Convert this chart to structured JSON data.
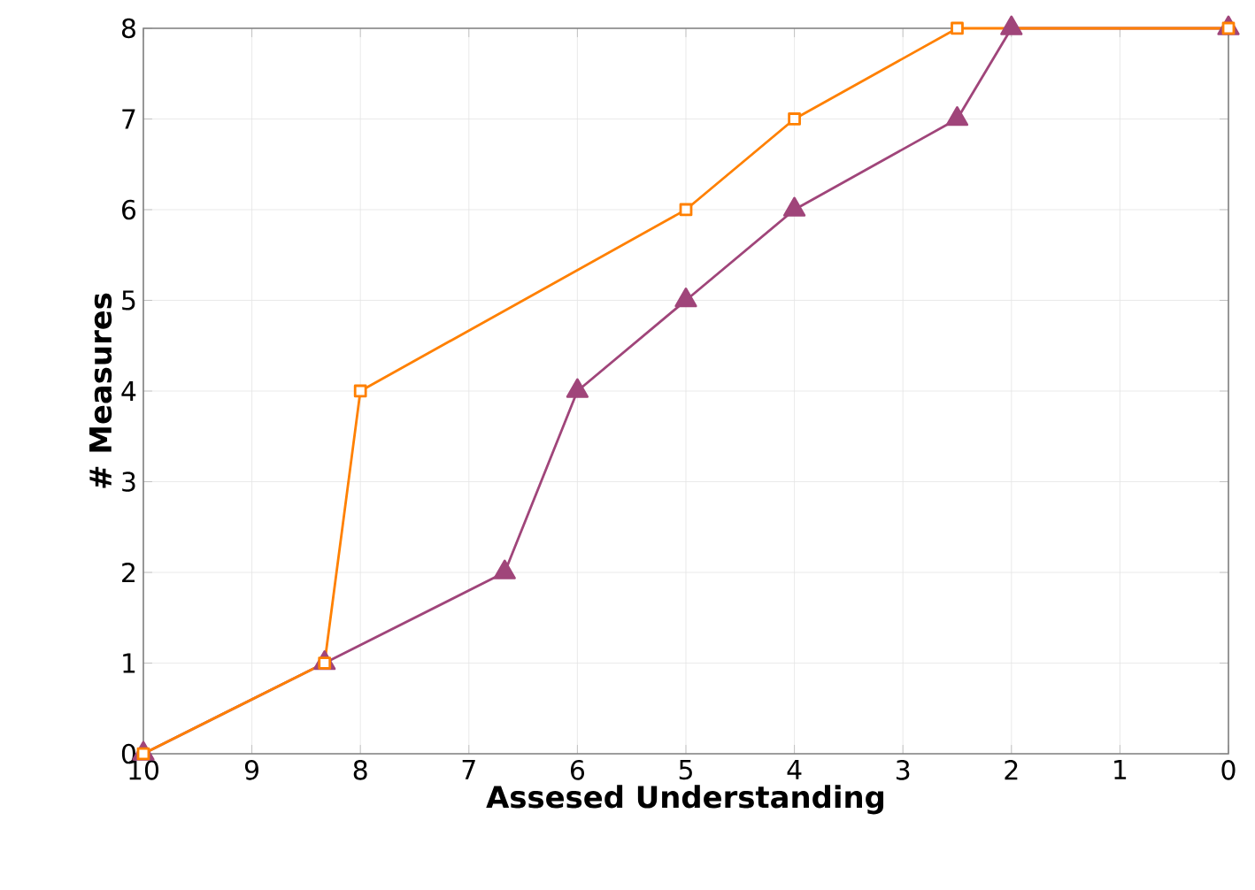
{
  "chart_data": {
    "type": "line",
    "xlabel": "Assesed Understanding",
    "ylabel": "# Measures",
    "xlim": [
      10,
      0
    ],
    "xticks": [
      10,
      9,
      8,
      7,
      6,
      5,
      4,
      3,
      2,
      1,
      0
    ],
    "ylim": [
      0,
      8
    ],
    "yticks": [
      0,
      1,
      2,
      3,
      4,
      5,
      6,
      7,
      8
    ],
    "grid": true,
    "series": [
      {
        "color": "#a0457a",
        "marker": "triangle",
        "x": [
          10,
          8.33,
          6.67,
          6,
          5,
          4,
          2.5,
          2,
          0
        ],
        "values": [
          0,
          1,
          2,
          4,
          5,
          6,
          7,
          8,
          8
        ]
      },
      {
        "color": "#ff8000",
        "marker": "square",
        "x": [
          10,
          8.33,
          8,
          5,
          4,
          2.5,
          0
        ],
        "values": [
          0,
          1,
          4,
          6,
          7,
          8,
          8
        ]
      }
    ]
  }
}
